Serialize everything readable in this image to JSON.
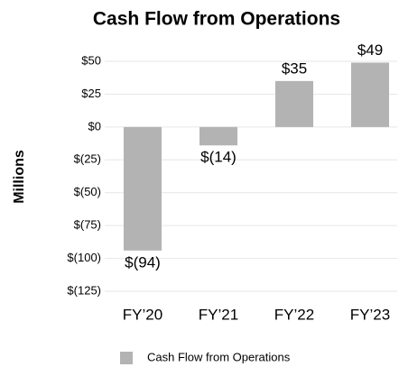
{
  "chart_data": {
    "type": "bar",
    "title": "Cash Flow from Operations",
    "y_label": "Millions",
    "categories": [
      "FY’20",
      "FY’21",
      "FY’22",
      "FY’23"
    ],
    "series": [
      {
        "name": "Cash Flow from Operations",
        "color": "#b3b3b3",
        "values": [
          -94,
          -14,
          35,
          49
        ],
        "value_labels": [
          "$(94)",
          "$(14)",
          "$35",
          "$49"
        ]
      }
    ],
    "ylim": [
      -125,
      50
    ],
    "yticks": [
      {
        "value": 50,
        "label": "$50"
      },
      {
        "value": 25,
        "label": "$25"
      },
      {
        "value": 0,
        "label": "$0"
      },
      {
        "value": -25,
        "label": "$(25)"
      },
      {
        "value": -50,
        "label": "$(50)"
      },
      {
        "value": -75,
        "label": "$(75)"
      },
      {
        "value": -100,
        "label": "$(100)"
      },
      {
        "value": -125,
        "label": "$(125)"
      }
    ],
    "grid": true,
    "legend": "bottom"
  }
}
